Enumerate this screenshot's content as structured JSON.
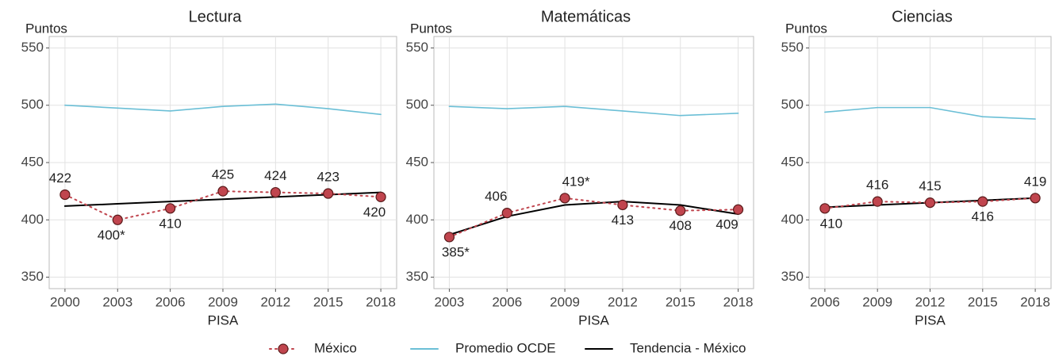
{
  "chart_data": [
    {
      "type": "line",
      "title": "Lectura",
      "ylabel": "Puntos",
      "xlabel": "PISA",
      "x": [
        2000,
        2003,
        2006,
        2009,
        2012,
        2015,
        2018
      ],
      "xlim": [
        1999.1,
        2018.9
      ],
      "xticks": [
        2000,
        2003,
        2006,
        2009,
        2012,
        2015,
        2018
      ],
      "ylim": [
        340,
        560
      ],
      "yticks": [
        350,
        400,
        450,
        500,
        550
      ],
      "grid": true,
      "series": [
        {
          "name": "México",
          "color": "#c0454e",
          "dash": "dotted",
          "marker": true,
          "values": [
            422,
            400,
            410,
            425,
            424,
            423,
            420
          ],
          "value_labels": [
            "422",
            "400*",
            "410",
            "425",
            "424",
            "423",
            "420"
          ]
        },
        {
          "name": "Promedio OCDE",
          "color": "#6bbfd6",
          "values": [
            500,
            497.5,
            495,
            499,
            501,
            497,
            492
          ]
        },
        {
          "name": "Tendencia - México",
          "color": "#000000",
          "values": [
            412,
            414,
            416,
            418,
            420,
            422,
            424
          ]
        }
      ]
    },
    {
      "type": "line",
      "title": "Matemáticas",
      "ylabel": "Puntos",
      "xlabel": "PISA",
      "x": [
        2003,
        2006,
        2009,
        2012,
        2015,
        2018
      ],
      "xlim": [
        2002.2,
        2018.8
      ],
      "xticks": [
        2003,
        2006,
        2009,
        2012,
        2015,
        2018
      ],
      "ylim": [
        340,
        560
      ],
      "yticks": [
        350,
        400,
        450,
        500,
        550
      ],
      "grid": true,
      "series": [
        {
          "color": "#c0454e",
          "dash": "dotted",
          "marker": true,
          "values": [
            385,
            406,
            419,
            413,
            408,
            409
          ],
          "value_labels": [
            "385*",
            "406",
            "419*",
            "413",
            "408",
            "409"
          ]
        },
        {
          "color": "#6bbfd6",
          "values": [
            499,
            497,
            499,
            495,
            491,
            493
          ]
        },
        {
          "color": "#000000",
          "values": [
            387,
            403,
            413,
            416,
            413,
            405
          ]
        }
      ]
    },
    {
      "type": "line",
      "title": "Ciencias",
      "ylabel": "Puntos",
      "xlabel": "PISA",
      "x": [
        2006,
        2009,
        2012,
        2015,
        2018
      ],
      "xlim": [
        2005.1,
        2018.9
      ],
      "xticks": [
        2006,
        2009,
        2012,
        2015,
        2018
      ],
      "ylim": [
        340,
        560
      ],
      "yticks": [
        350,
        400,
        450,
        500,
        550
      ],
      "grid": true,
      "series": [
        {
          "color": "#c0454e",
          "dash": "dotted",
          "marker": true,
          "values": [
            410,
            416,
            415,
            416,
            419
          ],
          "value_labels": [
            "410",
            "416",
            "415",
            "416",
            "419"
          ]
        },
        {
          "color": "#6bbfd6",
          "values": [
            494,
            498,
            498,
            490,
            488
          ]
        },
        {
          "color": "#000000",
          "values": [
            411,
            413,
            415,
            417,
            419
          ]
        }
      ]
    }
  ]
}
